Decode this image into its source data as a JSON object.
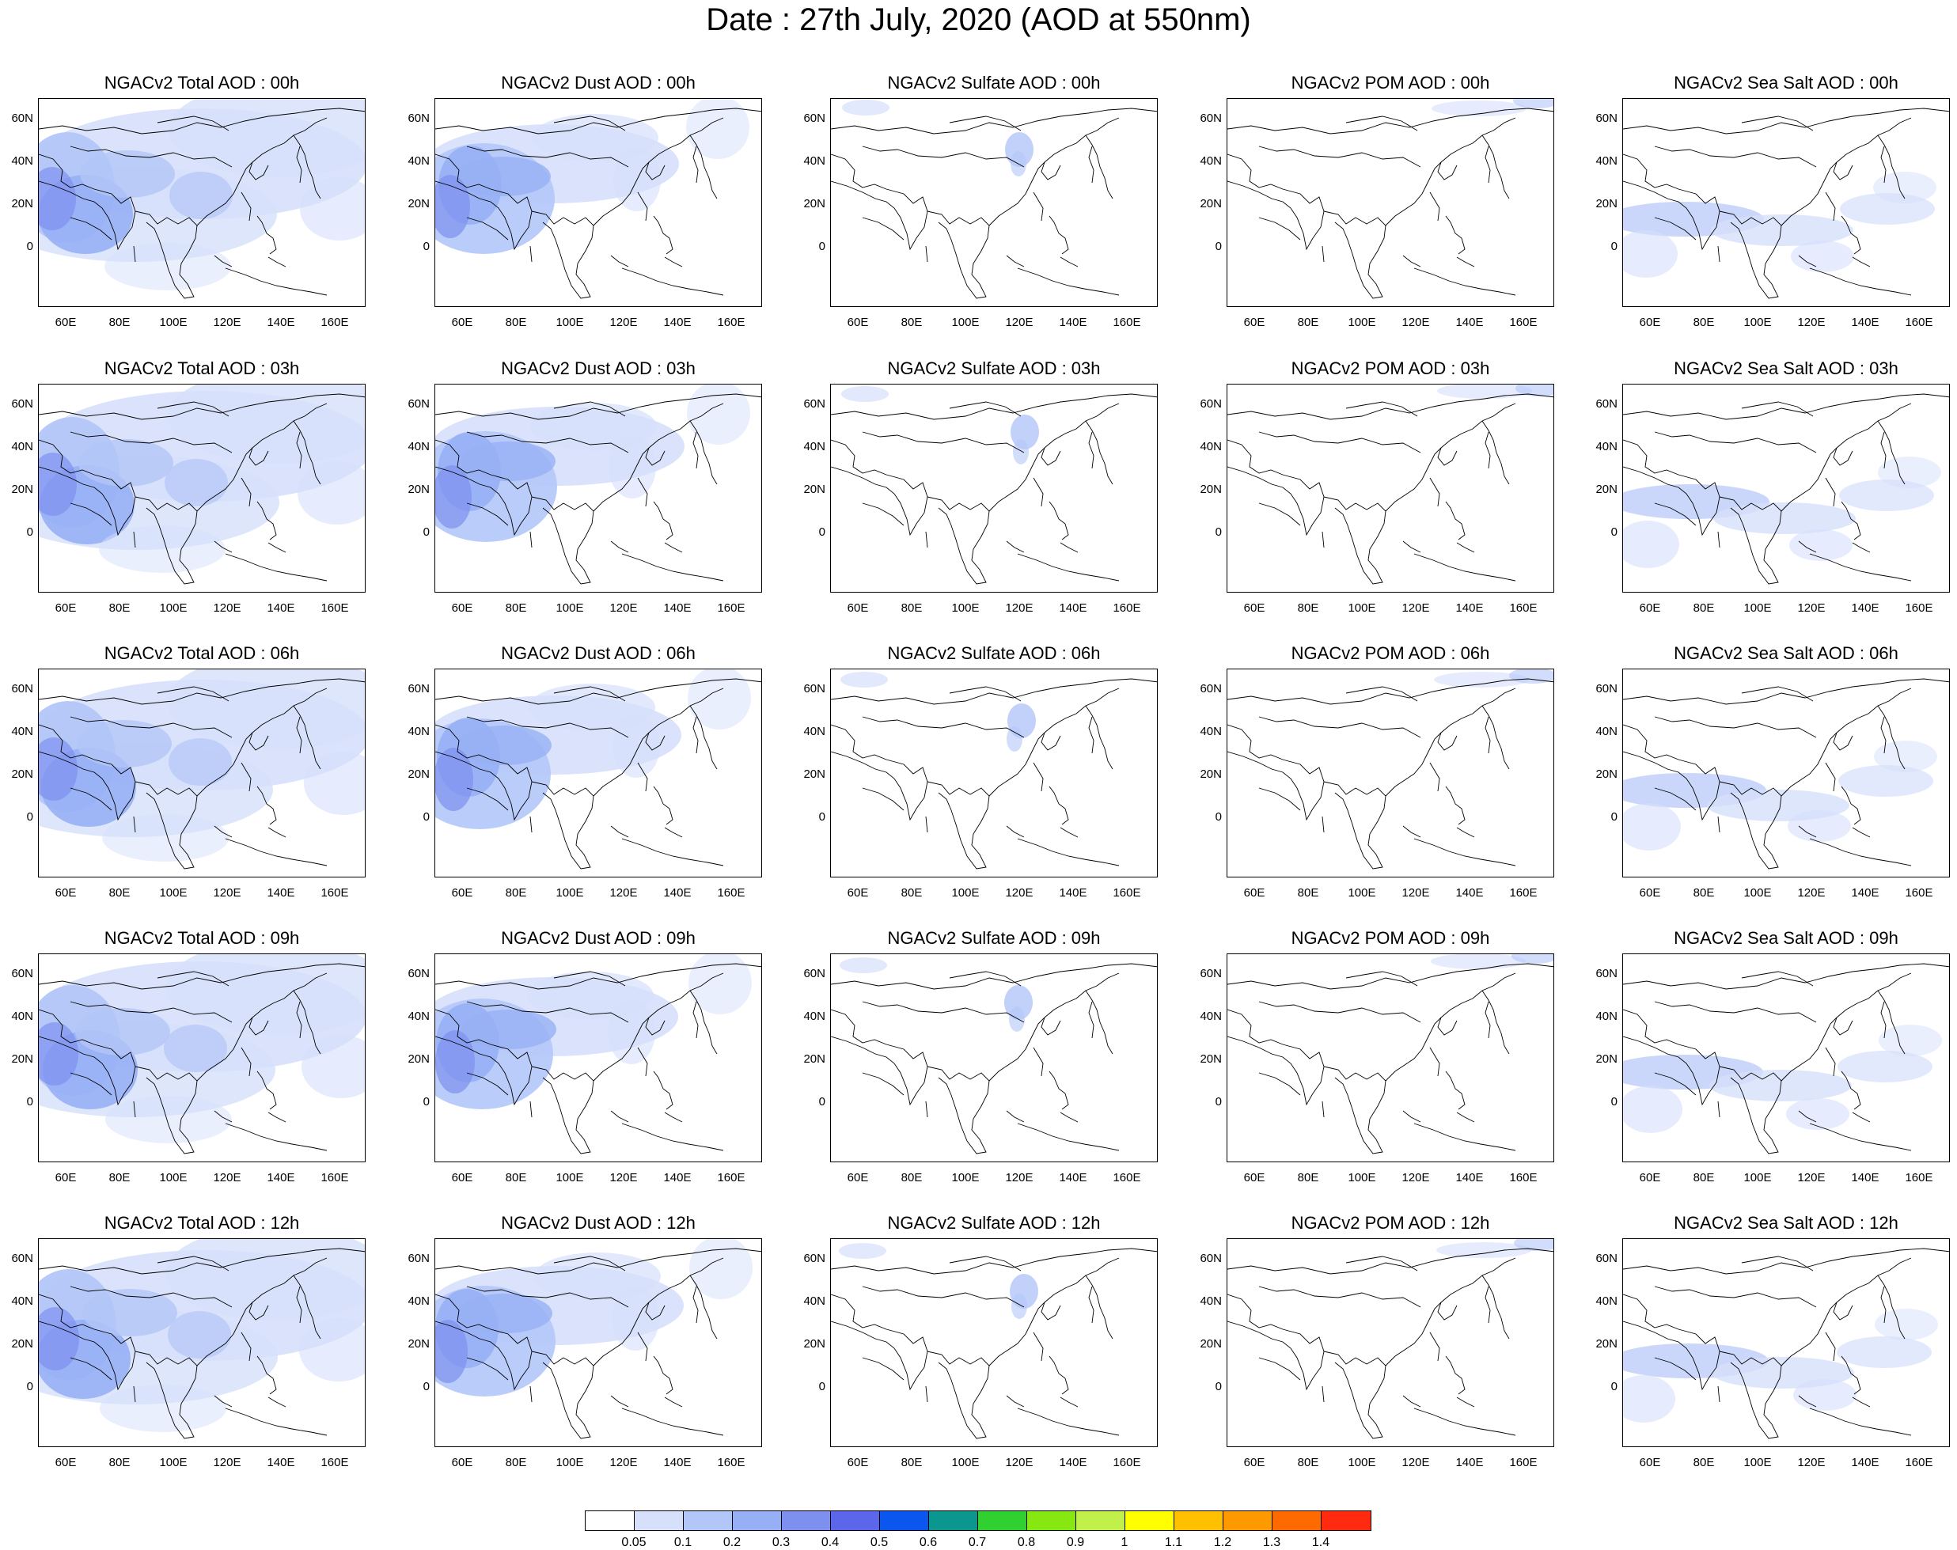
{
  "title": "Date : 27th July, 2020 (AOD at 550nm)",
  "rows": [
    {
      "titles": [
        "NGACv2 Total AOD : 00h",
        "NGACv2 Dust AOD : 00h",
        "NGACv2 Sulfate AOD : 00h",
        "NGACv2 POM AOD : 00h",
        "NGACv2 Sea Salt AOD : 00h"
      ]
    },
    {
      "titles": [
        "NGACv2 Total AOD : 03h",
        "NGACv2 Dust AOD : 03h",
        "NGACv2 Sulfate AOD : 03h",
        "NGACv2 POM AOD : 03h",
        "NGACv2 Sea Salt AOD : 03h"
      ]
    },
    {
      "titles": [
        "NGACv2 Total AOD : 06h",
        "NGACv2 Dust AOD : 06h",
        "NGACv2 Sulfate AOD : 06h",
        "NGACv2 POM AOD : 06h",
        "NGACv2 Sea Salt AOD : 06h"
      ]
    },
    {
      "titles": [
        "NGACv2 Total AOD : 09h",
        "NGACv2 Dust AOD : 09h",
        "NGACv2 Sulfate AOD : 09h",
        "NGACv2 POM AOD : 09h",
        "NGACv2 Sea Salt  AOD : 09h"
      ]
    },
    {
      "titles": [
        "NGACv2 Total AOD  : 12h",
        "NGACv2 Dust AOD : 12h",
        "NGACv2 Sulfate AOD : 12h",
        "NGACv2 POM  AOD : 12h",
        "NGACv2 Sea Salt  AOD : 12h"
      ]
    }
  ],
  "lat_ticks": [
    "60N",
    "40N",
    "20N",
    "0"
  ],
  "lon_ticks": [
    "60E",
    "80E",
    "100E",
    "120E",
    "140E",
    "160E"
  ],
  "colorbar": {
    "labels": [
      "0.05",
      "0.1",
      "0.2",
      "0.3",
      "0.4",
      "0.5",
      "0.6",
      "0.7",
      "0.8",
      "0.9",
      "1",
      "1.1",
      "1.2",
      "1.3",
      "1.4"
    ],
    "colors": [
      "#ffffff",
      "#d6e0fb",
      "#b3c6f8",
      "#97b0f5",
      "#7d90f0",
      "#5c66ea",
      "#0a56ee",
      "#0b9690",
      "#30d030",
      "#86e810",
      "#c2f04a",
      "#ffff00",
      "#ffc000",
      "#ff9900",
      "#ff6a00",
      "#ff2a10"
    ]
  },
  "palette": {
    "light": "#d6e0fb",
    "mid": "#b3c6f8",
    "med": "#97b0f5",
    "strong": "#7d90f0",
    "deep": "#5c66ea",
    "coast": "#000000"
  }
}
